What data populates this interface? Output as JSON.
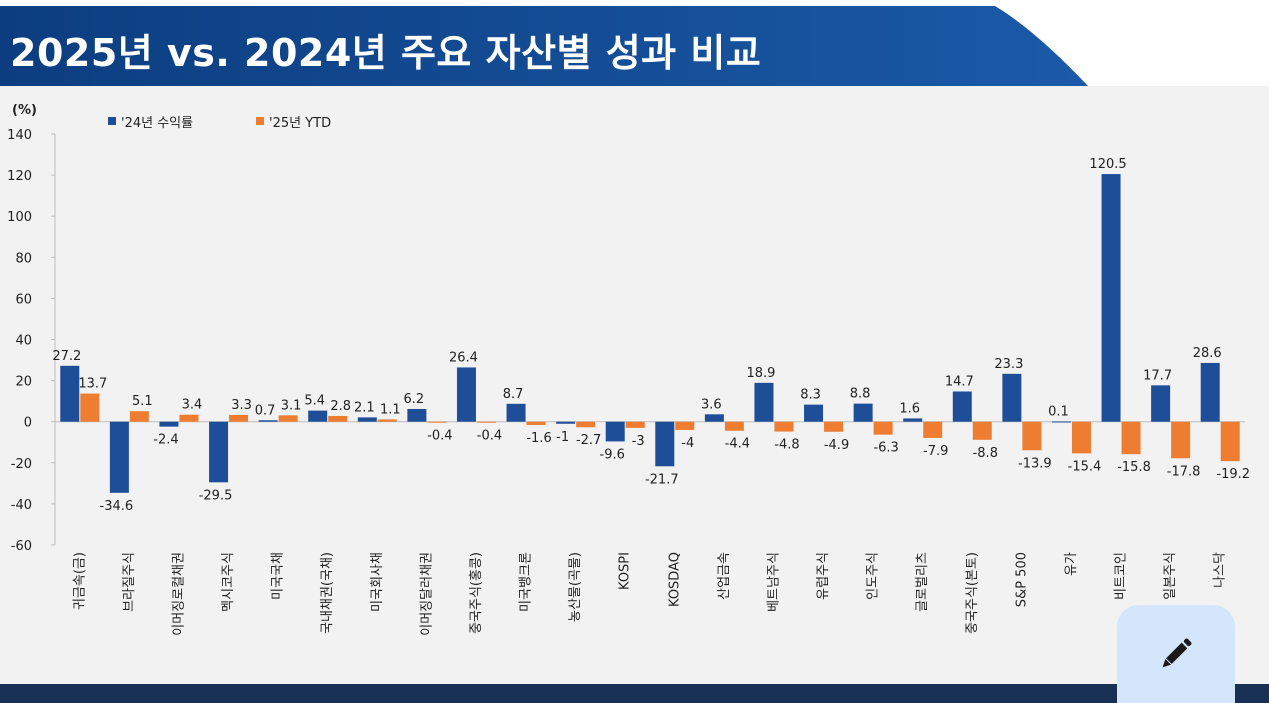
{
  "header": {
    "title": "2025년 vs. 2024년 주요 자산별 성과 비교"
  },
  "colors": {
    "series_2024": "#1f4e99",
    "series_2025": "#ee7d31",
    "header_bg": "#0e3f84",
    "footer_bg": "#1a3156",
    "fab_bg": "#d4e6fb"
  },
  "edit_button": {
    "icon": "pencil-icon"
  },
  "chart_data": {
    "type": "bar",
    "unit_label": "(%)",
    "ylim": [
      -60,
      140
    ],
    "yticks": [
      140,
      120,
      100,
      80,
      60,
      40,
      20,
      0,
      -20,
      -40,
      -60
    ],
    "legend_position": "top-left",
    "grid": false,
    "categories": [
      "귀금속(금)",
      "브라질주식",
      "이머징로컬채권",
      "멕시코주식",
      "미국국채",
      "국내채권(국채)",
      "미국회사채",
      "이머징달러채권",
      "중국주식(홍콩)",
      "미국뱅크론",
      "농산물(곡물)",
      "KOSPI",
      "KOSDAQ",
      "산업금속",
      "베트남주식",
      "유럽주식",
      "인도주식",
      "글로벌리츠",
      "중국주식(본토)",
      "S&P 500",
      "유가",
      "비트코인",
      "일본주식",
      "나스닥"
    ],
    "series": [
      {
        "name": "'24년 수익률",
        "values": [
          27.2,
          -34.6,
          -2.4,
          -29.5,
          0.7,
          5.4,
          2.1,
          6.2,
          26.4,
          8.7,
          -1.0,
          -9.6,
          -21.7,
          3.6,
          18.9,
          8.3,
          8.8,
          1.6,
          14.7,
          23.3,
          0.1,
          120.5,
          17.7,
          28.6
        ]
      },
      {
        "name": "'25년 YTD",
        "values": [
          13.7,
          5.1,
          3.4,
          3.3,
          3.1,
          2.8,
          1.1,
          -0.4,
          -0.4,
          -1.6,
          -2.7,
          -3.0,
          -4.0,
          -4.4,
          -4.8,
          -4.9,
          -6.3,
          -7.9,
          -8.8,
          -13.9,
          -15.4,
          -15.8,
          -17.8,
          -19.2
        ]
      }
    ]
  }
}
